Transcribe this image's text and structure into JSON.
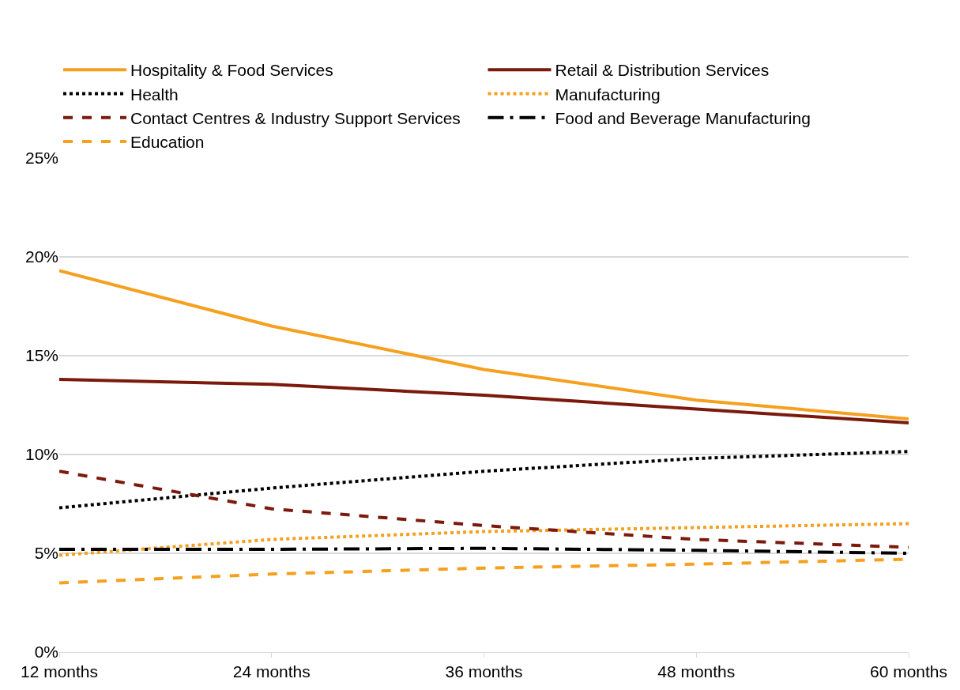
{
  "chart_data": {
    "type": "line",
    "categories": [
      "12 months",
      "24 months",
      "36 months",
      "48 months",
      "60 months"
    ],
    "series": [
      {
        "name": "Hospitality & Food Services",
        "color": "#f5a01e",
        "line_style": "solid",
        "values": [
          19.3,
          16.5,
          14.3,
          12.75,
          11.8
        ]
      },
      {
        "name": "Retail & Distribution Services",
        "color": "#7b1a0c",
        "line_style": "solid",
        "values": [
          13.8,
          13.55,
          13.0,
          12.3,
          11.6
        ]
      },
      {
        "name": "Health",
        "color": "#000000",
        "line_style": "dotted",
        "values": [
          7.3,
          8.3,
          9.15,
          9.8,
          10.15
        ]
      },
      {
        "name": "Manufacturing",
        "color": "#f5a01e",
        "line_style": "dotted",
        "values": [
          4.9,
          5.7,
          6.1,
          6.3,
          6.5
        ]
      },
      {
        "name": "Contact Centres & Industry Support Services",
        "color": "#7b1a0c",
        "line_style": "dashed",
        "values": [
          9.15,
          7.25,
          6.4,
          5.7,
          5.3
        ]
      },
      {
        "name": "Food and Beverage Manufacturing",
        "color": "#000000",
        "line_style": "dashdot",
        "values": [
          5.2,
          5.2,
          5.25,
          5.15,
          5.0
        ]
      },
      {
        "name": "Education",
        "color": "#f5a01e",
        "line_style": "dashed",
        "values": [
          3.5,
          3.95,
          4.25,
          4.45,
          4.7
        ]
      }
    ],
    "ylim": [
      0,
      25
    ],
    "yticks": [
      {
        "value": 0,
        "label": "0%"
      },
      {
        "value": 5,
        "label": "5%"
      },
      {
        "value": 10,
        "label": "10%"
      },
      {
        "value": 15,
        "label": "15%"
      },
      {
        "value": 20,
        "label": "20%"
      },
      {
        "value": 25,
        "label": "25%"
      }
    ],
    "grid": "y",
    "legend": "top",
    "marker": "none"
  }
}
